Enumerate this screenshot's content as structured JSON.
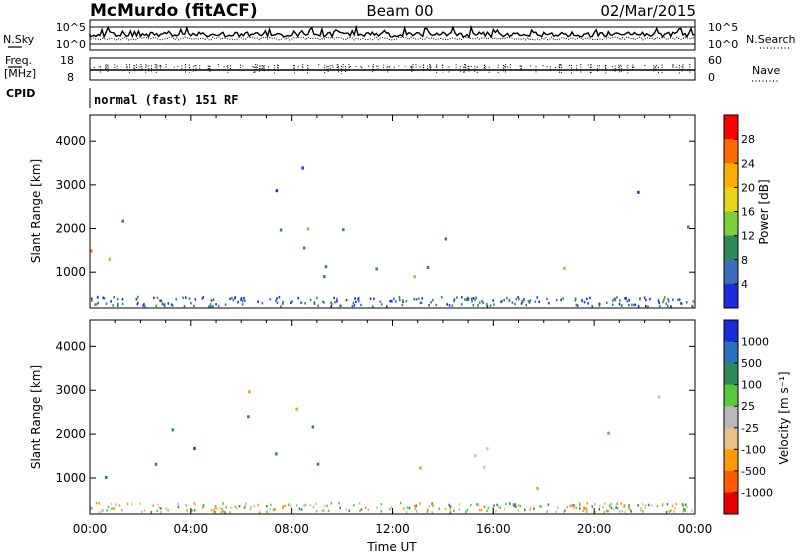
{
  "header": {
    "station": "McMurdo (fitACF)",
    "beam": "Beam 00",
    "date": "02/Mar/2015"
  },
  "top_panel": {
    "left_label": "N.Sky",
    "right_label": "N.Search",
    "left_ticks": [
      "10^5",
      "10^0"
    ],
    "right_ticks": [
      "10^5",
      "10^0"
    ]
  },
  "freq_panel": {
    "left_label_1": "Freq.",
    "left_label_2": "[MHz]",
    "left_ticks": [
      "18",
      "8"
    ],
    "right_label": "Nave",
    "right_ticks": [
      "60",
      "0"
    ]
  },
  "cpid": {
    "label": "CPID",
    "value": "normal (fast) 151 RF"
  },
  "chart_data": [
    {
      "type": "heatmap",
      "name": "power",
      "ylabel": "Slant Range [km]",
      "ylim": [
        180,
        4600
      ],
      "yticks": [
        "1000",
        "2000",
        "3000",
        "4000"
      ],
      "xlabel": "",
      "xticks": [],
      "colorbar": {
        "label": "Power [dB]",
        "ticks": [
          "28",
          "24",
          "20",
          "16",
          "12",
          "8",
          "4"
        ],
        "colors": [
          "#ff0000",
          "#ff6a00",
          "#ffae00",
          "#e9d31c",
          "#7ccf3a",
          "#2e8b57",
          "#3c6db8",
          "#1c2bdc"
        ]
      },
      "echo_regions": [
        {
          "t0": 0.0,
          "t1": 3.5,
          "r0": 600,
          "r1": 1600,
          "level": "high"
        },
        {
          "t0": 0.0,
          "t1": 3.8,
          "r0": 1600,
          "r1": 2400,
          "level": "mid"
        },
        {
          "t0": 4.0,
          "t1": 10.5,
          "r0": 700,
          "r1": 2600,
          "level": "mid"
        },
        {
          "t0": 5.5,
          "t1": 10.5,
          "r0": 2600,
          "r1": 3500,
          "level": "low"
        },
        {
          "t0": 11.0,
          "t1": 16.5,
          "r0": 700,
          "r1": 2200,
          "level": "mid"
        },
        {
          "t0": 17.5,
          "t1": 20.0,
          "r0": 700,
          "r1": 1700,
          "level": "mid"
        },
        {
          "t0": 20.5,
          "t1": 24.0,
          "r0": 2000,
          "r1": 3300,
          "level": "low"
        },
        {
          "t0": 21.0,
          "t1": 22.5,
          "r0": 2900,
          "r1": 3300,
          "level": "high"
        }
      ]
    },
    {
      "type": "heatmap",
      "name": "velocity",
      "ylabel": "Slant Range [km]",
      "ylim": [
        180,
        4600
      ],
      "yticks": [
        "1000",
        "2000",
        "3000",
        "4000"
      ],
      "xlabel": "Time UT",
      "xticks": [
        "00:00",
        "04:00",
        "08:00",
        "12:00",
        "16:00",
        "20:00",
        "00:00"
      ],
      "colorbar": {
        "label": "Velocity [m s⁻¹]",
        "ticks": [
          "1000",
          "500",
          "100",
          "25",
          "-25",
          "-100",
          "-500",
          "-1000"
        ],
        "colors": [
          "#1c2bdc",
          "#2d6fba",
          "#2e8b57",
          "#5ac83c",
          "#b8b8b8",
          "#e8c08a",
          "#ff9a00",
          "#ff5a00",
          "#e80000"
        ]
      },
      "echo_regions": [
        {
          "t0": 0.0,
          "t1": 4.0,
          "r0": 600,
          "r1": 1700,
          "level": "green"
        },
        {
          "t0": 0.0,
          "t1": 3.8,
          "r0": 1700,
          "r1": 2500,
          "level": "green"
        },
        {
          "t0": 4.0,
          "t1": 10.5,
          "r0": 700,
          "r1": 2500,
          "level": "blue"
        },
        {
          "t0": 5.5,
          "t1": 10.5,
          "r0": 2500,
          "r1": 3500,
          "level": "orange"
        },
        {
          "t0": 11.0,
          "t1": 16.5,
          "r0": 700,
          "r1": 2200,
          "level": "orange"
        },
        {
          "t0": 17.5,
          "t1": 20.0,
          "r0": 700,
          "r1": 1700,
          "level": "orange"
        },
        {
          "t0": 20.5,
          "t1": 24.0,
          "r0": 2000,
          "r1": 3300,
          "level": "grey"
        }
      ]
    }
  ]
}
